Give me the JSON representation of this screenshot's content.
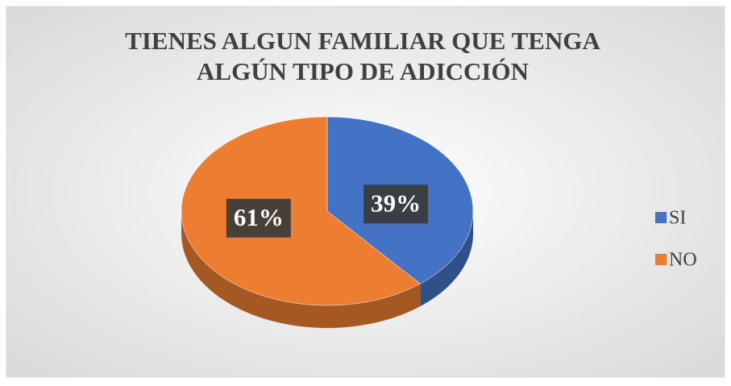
{
  "chart_data": {
    "type": "pie",
    "title": "TIENES ALGUN FAMILIAR QUE TENGA ALGÚN TIPO DE ADICCIÓN",
    "categories": [
      "SI",
      "NO"
    ],
    "values": [
      39,
      61
    ],
    "value_labels": [
      "39%",
      "61%"
    ],
    "colors": [
      "#4472c4",
      "#ed7d31"
    ],
    "legend": "right"
  }
}
